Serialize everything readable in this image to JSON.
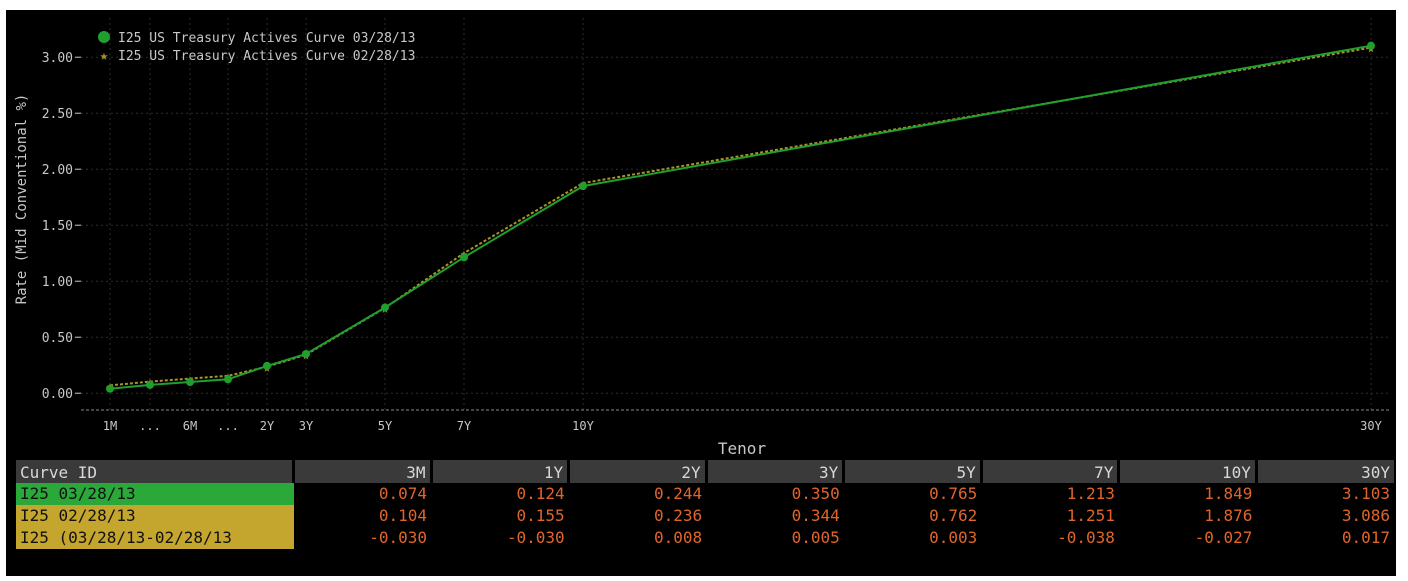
{
  "chart_data": {
    "type": "line",
    "ylabel": "Rate (Mid Conventional %)",
    "xlabel": "Tenor",
    "ylim": [
      -0.15,
      3.35
    ],
    "yticks": [
      "0.00",
      "0.50",
      "1.00",
      "1.50",
      "2.00",
      "2.50",
      "3.00"
    ],
    "x_axis_labels": [
      {
        "label": "1M",
        "tenor_years": 0.083
      },
      {
        "label": "...",
        "tenor_years": 0.5
      },
      {
        "label": "6M",
        "tenor_years": 1.0
      },
      {
        "label": "...",
        "tenor_years": 1.5
      },
      {
        "label": "2Y",
        "tenor_years": 2.0
      },
      {
        "label": "3Y",
        "tenor_years": 3.0
      },
      {
        "label": "5Y",
        "tenor_years": 5.0
      },
      {
        "label": "7Y",
        "tenor_years": 7.0
      },
      {
        "label": "10Y",
        "tenor_years": 10.0
      },
      {
        "label": "30Y",
        "tenor_years": 30.0
      }
    ],
    "grid": true,
    "legend_position": "top-left",
    "series": [
      {
        "name": "I25 US Treasury Actives Curve 03/28/13",
        "color": "#1fa02e",
        "marker": "circle",
        "points": [
          {
            "x": 0.083,
            "y": 0.04
          },
          {
            "x": 0.5,
            "y": 0.074
          },
          {
            "x": 1.0,
            "y": 0.1
          },
          {
            "x": 1.5,
            "y": 0.124
          },
          {
            "x": 2.0,
            "y": 0.244
          },
          {
            "x": 3.0,
            "y": 0.35
          },
          {
            "x": 5.0,
            "y": 0.765
          },
          {
            "x": 7.0,
            "y": 1.213
          },
          {
            "x": 10.0,
            "y": 1.849
          },
          {
            "x": 30.0,
            "y": 3.103
          }
        ]
      },
      {
        "name": "I25 US Treasury Actives Curve 02/28/13",
        "color": "#a8922a",
        "marker": "star",
        "points": [
          {
            "x": 0.083,
            "y": 0.07
          },
          {
            "x": 0.5,
            "y": 0.104
          },
          {
            "x": 1.0,
            "y": 0.13
          },
          {
            "x": 1.5,
            "y": 0.155
          },
          {
            "x": 2.0,
            "y": 0.236
          },
          {
            "x": 3.0,
            "y": 0.344
          },
          {
            "x": 5.0,
            "y": 0.762
          },
          {
            "x": 7.0,
            "y": 1.251
          },
          {
            "x": 10.0,
            "y": 1.876
          },
          {
            "x": 30.0,
            "y": 3.086
          }
        ]
      }
    ]
  },
  "table": {
    "header_id": "Curve ID",
    "columns": [
      "3M",
      "1Y",
      "2Y",
      "3Y",
      "5Y",
      "7Y",
      "10Y",
      "30Y"
    ],
    "rows": [
      {
        "id": "I25 03/28/13",
        "values": [
          "0.074",
          "0.124",
          "0.244",
          "0.350",
          "0.765",
          "1.213",
          "1.849",
          "3.103"
        ]
      },
      {
        "id": "I25 02/28/13",
        "values": [
          "0.104",
          "0.155",
          "0.236",
          "0.344",
          "0.762",
          "1.251",
          "1.876",
          "3.086"
        ]
      },
      {
        "id": "I25 (03/28/13-02/28/13",
        "values": [
          "-0.030",
          "-0.030",
          "0.008",
          "0.005",
          "0.003",
          "-0.038",
          "-0.027",
          "0.017"
        ]
      }
    ]
  },
  "colors": {
    "background": "#000000",
    "grid": "#2c2c2c",
    "axis_text": "#c8c8c8",
    "value_text": "#e0652a",
    "row_a_id_bg": "#2aa83a",
    "row_b_id_bg": "#c4a52e"
  }
}
